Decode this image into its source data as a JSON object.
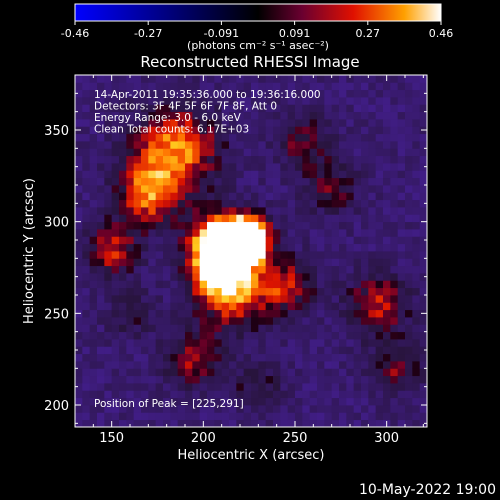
{
  "chart_data": {
    "type": "heatmap",
    "title": "Reconstructed RHESSI Image",
    "xlabel": "Heliocentric X (arcsec)",
    "ylabel": "Heliocentric Y (arcsec)",
    "xlim": [
      130,
      322
    ],
    "ylim": [
      188,
      380
    ],
    "x_ticks": [
      150,
      200,
      250,
      300
    ],
    "y_ticks": [
      200,
      250,
      300,
      350
    ],
    "colorbar": {
      "min": -0.46,
      "max": 0.46,
      "ticks": [
        "-0.46",
        "-0.27",
        "-0.091",
        "0.091",
        "0.27",
        "0.46"
      ],
      "unit": "(photons cm⁻² s⁻¹ asec⁻²)"
    },
    "peak": {
      "x": 225,
      "y": 291
    },
    "annotations": [
      "14-Apr-2011 19:35:36.000 to 19:36:16.000",
      "Detectors: 3F 4F 5F 6F 7F 8F, Att 0",
      "Energy Range: 3.0 - 6.0 keV",
      "Clean     Total counts: 6.17E+03"
    ],
    "peak_label": "Position of Peak = [225,291]",
    "footer_date": "10-May-2022 19:00"
  },
  "colors": {
    "background": "#000000",
    "text": "#ffffff"
  }
}
